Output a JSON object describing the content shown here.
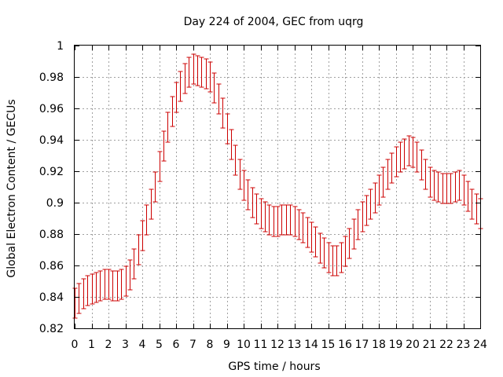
{
  "chart_data": {
    "type": "line",
    "title": "Day 224 of 2004, GEC from uqrg",
    "xlabel": "GPS time / hours",
    "ylabel": "Global Electron Content / GECUs",
    "xlim": [
      0,
      24
    ],
    "ylim": [
      0.82,
      1.0
    ],
    "x_ticks": [
      0,
      1,
      2,
      3,
      4,
      5,
      6,
      7,
      8,
      9,
      10,
      11,
      12,
      13,
      14,
      15,
      16,
      17,
      18,
      19,
      20,
      21,
      22,
      23,
      24
    ],
    "x_tick_labels": [
      "0",
      "1",
      "2",
      "3",
      "4",
      "5",
      "6",
      "7",
      "8",
      "9",
      "10",
      "11",
      "12",
      "13",
      "14",
      "15",
      "16",
      "17",
      "18",
      "19",
      "20",
      "21",
      "22",
      "23",
      "24"
    ],
    "y_ticks": [
      0.82,
      0.84,
      0.86,
      0.88,
      0.9,
      0.92,
      0.94,
      0.96,
      0.98,
      1.0
    ],
    "y_tick_labels": [
      "0.82",
      "0.84",
      "0.86",
      "0.88",
      "0.9",
      "0.92",
      "0.94",
      "0.96",
      "0.98",
      "1"
    ],
    "grid": true,
    "error_bar_color": "#cc0000",
    "error": 0.0095,
    "series": [
      {
        "x": [
          0,
          0.25,
          0.5,
          0.75,
          1,
          1.25,
          1.5,
          1.75,
          2,
          2.25,
          2.5,
          2.75,
          3,
          3.25,
          3.5,
          3.75,
          4,
          4.25,
          4.5,
          4.75,
          5,
          5.25,
          5.5,
          5.75,
          6,
          6.25,
          6.5,
          6.75,
          7,
          7.25,
          7.5,
          7.75,
          8,
          8.25,
          8.5,
          8.75,
          9,
          9.25,
          9.5,
          9.75,
          10,
          10.25,
          10.5,
          10.75,
          11,
          11.25,
          11.5,
          11.75,
          12,
          12.25,
          12.5,
          12.75,
          13,
          13.25,
          13.5,
          13.75,
          14,
          14.25,
          14.5,
          14.75,
          15,
          15.25,
          15.5,
          15.75,
          16,
          16.25,
          16.5,
          16.75,
          17,
          17.25,
          17.5,
          17.75,
          18,
          18.25,
          18.5,
          18.75,
          19,
          19.25,
          19.5,
          19.75,
          20,
          20.25,
          20.5,
          20.75,
          21,
          21.25,
          21.5,
          21.75,
          22,
          22.25,
          22.5,
          22.75,
          23,
          23.25,
          23.5,
          23.75,
          24
        ],
        "values": [
          0.836,
          0.839,
          0.842,
          0.844,
          0.845,
          0.846,
          0.847,
          0.848,
          0.848,
          0.847,
          0.847,
          0.848,
          0.85,
          0.854,
          0.861,
          0.87,
          0.879,
          0.889,
          0.899,
          0.91,
          0.923,
          0.936,
          0.948,
          0.958,
          0.967,
          0.974,
          0.979,
          0.983,
          0.985,
          0.984,
          0.983,
          0.982,
          0.98,
          0.973,
          0.966,
          0.957,
          0.947,
          0.937,
          0.927,
          0.918,
          0.911,
          0.905,
          0.9,
          0.896,
          0.893,
          0.891,
          0.889,
          0.888,
          0.888,
          0.889,
          0.889,
          0.889,
          0.888,
          0.886,
          0.884,
          0.881,
          0.878,
          0.875,
          0.871,
          0.868,
          0.865,
          0.863,
          0.863,
          0.865,
          0.869,
          0.874,
          0.88,
          0.886,
          0.891,
          0.895,
          0.899,
          0.903,
          0.908,
          0.913,
          0.918,
          0.922,
          0.926,
          0.929,
          0.931,
          0.933,
          0.932,
          0.929,
          0.924,
          0.918,
          0.913,
          0.911,
          0.91,
          0.909,
          0.909,
          0.909,
          0.91,
          0.911,
          0.908,
          0.904,
          0.899,
          0.896,
          0.893
        ]
      }
    ]
  }
}
